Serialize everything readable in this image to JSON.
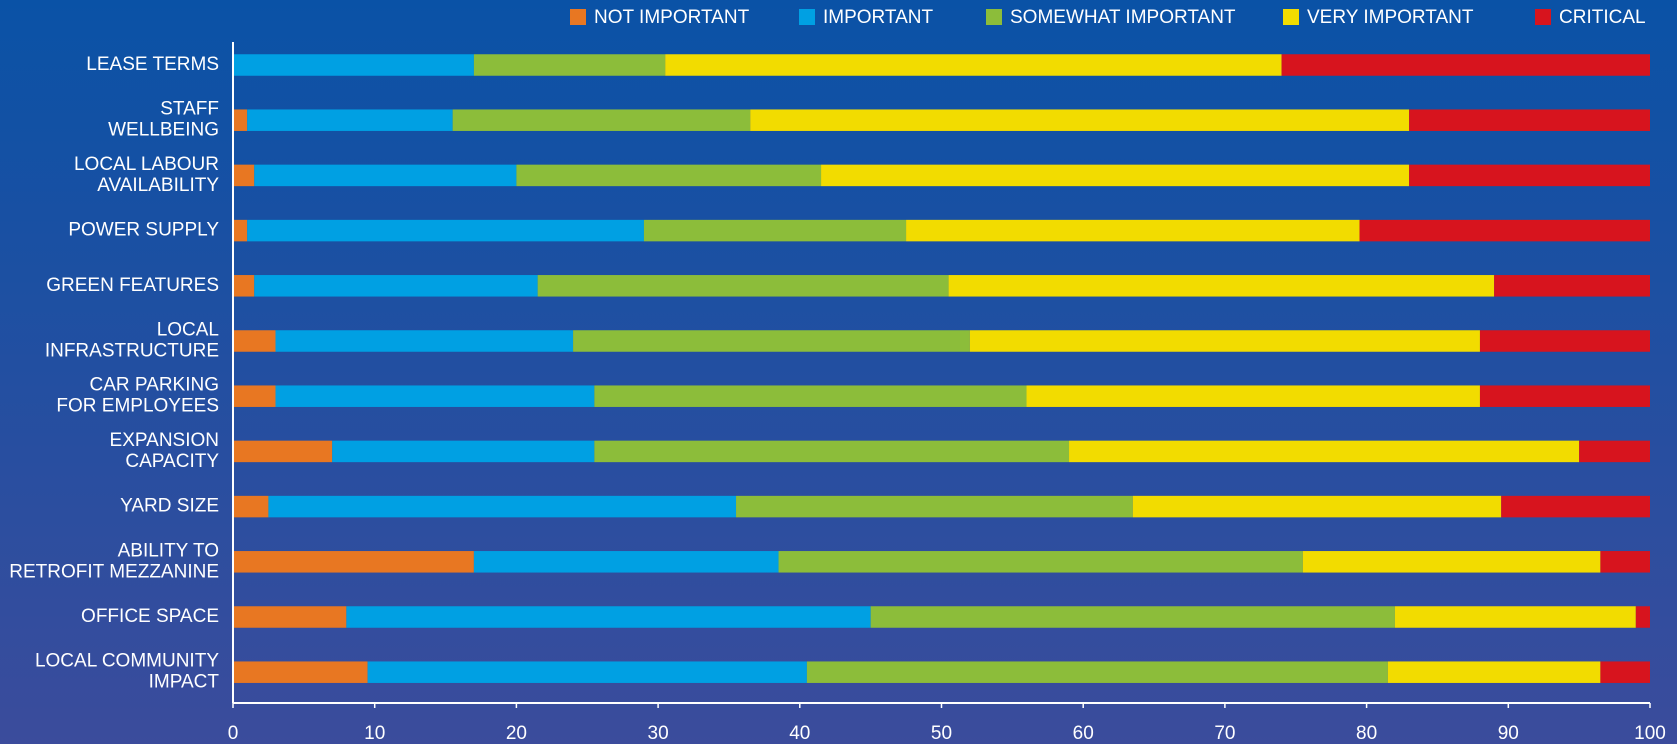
{
  "chart_data": {
    "type": "stacked-barh",
    "categories": [
      "LEASE TERMS",
      "STAFF\nWELLBEING",
      "LOCAL LABOUR\nAVAILABILITY",
      "POWER SUPPLY",
      "GREEN FEATURES",
      "LOCAL\nINFRASTRUCTURE",
      "CAR PARKING\nFOR EMPLOYEES",
      "EXPANSION\nCAPACITY",
      "YARD SIZE",
      "ABILITY TO\nRETROFIT MEZZANINE",
      "OFFICE SPACE",
      "LOCAL COMMUNITY\nIMPACT"
    ],
    "series": [
      {
        "name": "NOT IMPORTANT",
        "color": "#e87722",
        "values": [
          0,
          1,
          1.5,
          1,
          1.5,
          3,
          3,
          7,
          2.5,
          17,
          8,
          9.5
        ]
      },
      {
        "name": "IMPORTANT",
        "color": "#00a0e3",
        "values": [
          17,
          14.5,
          18.5,
          28,
          20,
          21,
          22.5,
          18.5,
          33,
          21.5,
          37,
          31
        ]
      },
      {
        "name": "SOMEWHAT IMPORTANT",
        "color": "#8cbd3a",
        "values": [
          13.5,
          21,
          21.5,
          18.5,
          29,
          28,
          30.5,
          33.5,
          28,
          37,
          37,
          41
        ]
      },
      {
        "name": "VERY IMPORTANT",
        "color": "#f2dc00",
        "values": [
          43.5,
          46.5,
          41.5,
          32,
          38.5,
          36,
          32,
          36,
          26,
          21,
          17,
          15
        ]
      },
      {
        "name": "CRITICAL",
        "color": "#d7141e",
        "values": [
          26,
          17,
          17,
          20.5,
          11,
          12,
          12,
          5,
          10.5,
          3.5,
          1,
          3.5
        ]
      }
    ],
    "xlim": [
      0,
      100
    ],
    "xticks": [
      0,
      10,
      20,
      30,
      40,
      50,
      60,
      70,
      80,
      90,
      100
    ],
    "legend": "top-right",
    "grid": false
  }
}
